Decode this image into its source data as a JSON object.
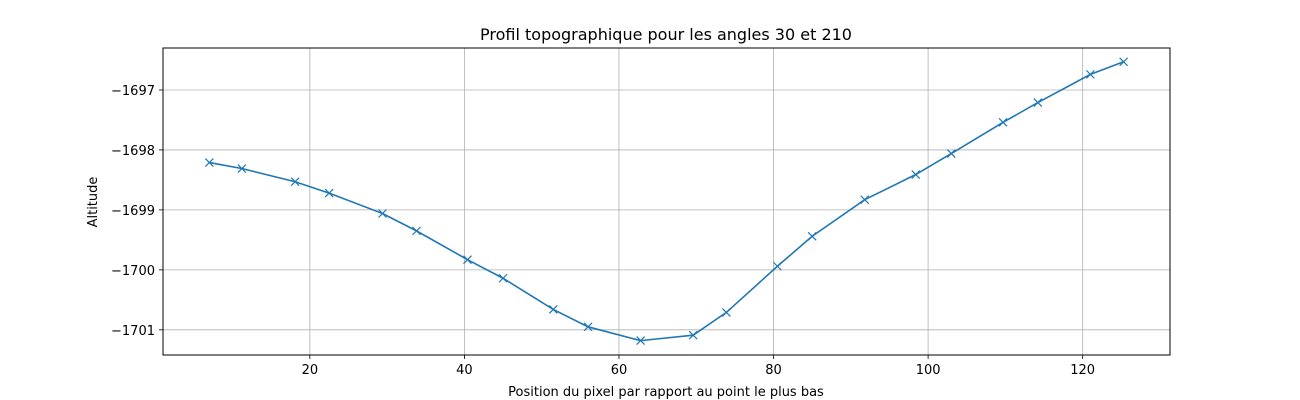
{
  "chart_data": {
    "type": "line",
    "title": "Profil topographique pour les angles 30 et 210",
    "xlabel": "Position du pixel par rapport au point le plus bas",
    "ylabel": "Altitude",
    "xlim": [
      1,
      131.3
    ],
    "ylim": [
      -1701.42,
      -1696.3
    ],
    "xticks": [
      20,
      40,
      60,
      80,
      100,
      120
    ],
    "yticks": [
      -1697,
      -1698,
      -1699,
      -1700,
      -1701
    ],
    "xtick_labels": [
      "20",
      "40",
      "60",
      "80",
      "100",
      "120"
    ],
    "ytick_labels": [
      "−1697",
      "−1698",
      "−1699",
      "−1700",
      "−1701"
    ],
    "grid": true,
    "marker": "x",
    "color": "#1f77b4",
    "series": [
      {
        "x": [
          7.0,
          11.2,
          18.1,
          22.5,
          29.4,
          33.8,
          40.4,
          45.0,
          51.5,
          56.0,
          62.8,
          69.6,
          73.9,
          80.5,
          85.0,
          91.8,
          98.4,
          103.0,
          109.7,
          114.2,
          121.0,
          125.3
        ],
        "y": [
          -1698.21,
          -1698.31,
          -1698.53,
          -1698.72,
          -1699.06,
          -1699.35,
          -1699.83,
          -1700.14,
          -1700.66,
          -1700.95,
          -1701.18,
          -1701.09,
          -1700.71,
          -1699.94,
          -1699.44,
          -1698.83,
          -1698.41,
          -1698.06,
          -1697.54,
          -1697.21,
          -1696.74,
          -1696.53
        ]
      }
    ]
  }
}
